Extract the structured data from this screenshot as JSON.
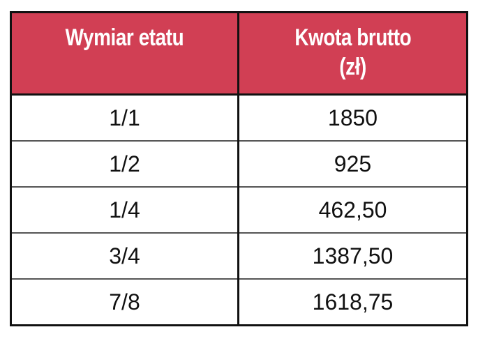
{
  "table": {
    "headers": [
      "Wymiar etatu",
      "Kwota brutto (zł)"
    ],
    "header_lines": [
      [
        "Wymiar etatu"
      ],
      [
        "Kwota brutto",
        "(zł)"
      ]
    ],
    "rows": [
      [
        "1/1",
        "1850"
      ],
      [
        "1/2",
        "925"
      ],
      [
        "1/4",
        "462,50"
      ],
      [
        "3/4",
        "1387,50"
      ],
      [
        "7/8",
        "1618,75"
      ]
    ]
  },
  "colors": {
    "header_bg": "#d13f54",
    "header_text": "#ffffff",
    "border": "#111111"
  }
}
